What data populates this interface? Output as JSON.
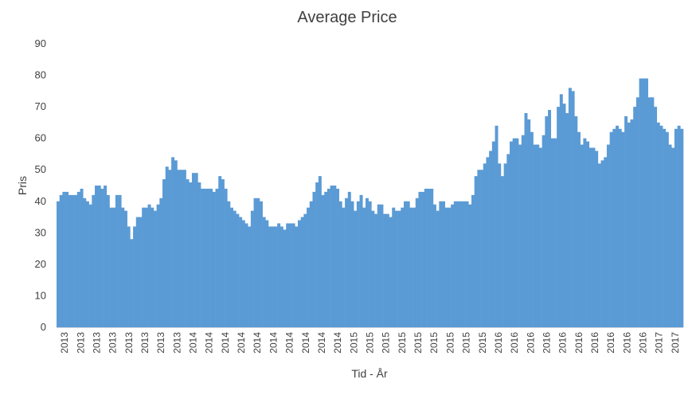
{
  "chart_data": {
    "type": "area",
    "title": "Average Price",
    "xlabel": "Tid - År",
    "ylabel": "Pris",
    "ylim": [
      0,
      90
    ],
    "yticks": [
      "0",
      "10",
      "20",
      "30",
      "40",
      "50",
      "60",
      "70",
      "80",
      "90"
    ],
    "xtick_labels": [
      "2013",
      "2013",
      "2013",
      "2013",
      "2013",
      "2013",
      "2013",
      "2013",
      "2014",
      "2014",
      "2014",
      "2014",
      "2014",
      "2014",
      "2014",
      "2014",
      "2014",
      "2014",
      "2015",
      "2015",
      "2015",
      "2015",
      "2015",
      "2015",
      "2015",
      "2015",
      "2015",
      "2016",
      "2016",
      "2016",
      "2016",
      "2016",
      "2016",
      "2016",
      "2016",
      "2016",
      "2016",
      "2017",
      "2017"
    ],
    "grid": false,
    "legend": "none",
    "color": "#5b9bd5",
    "series": [
      {
        "values": [
          40,
          42,
          43,
          43,
          42,
          42,
          42,
          43,
          44,
          41,
          40,
          39,
          42,
          45,
          45,
          44,
          45,
          42,
          38,
          38,
          42,
          42,
          38,
          37,
          32,
          28,
          32,
          35,
          35,
          38,
          38,
          39,
          38,
          37,
          39,
          41,
          47,
          51,
          50,
          54,
          53,
          50,
          50,
          50,
          47,
          46,
          49,
          49,
          46,
          44,
          44,
          44,
          44,
          43,
          44,
          48,
          47,
          44,
          40,
          38,
          37,
          36,
          35,
          34,
          33,
          32,
          37,
          41,
          41,
          40,
          35,
          34,
          32,
          32,
          32,
          33,
          32,
          31,
          33,
          33,
          33,
          32,
          34,
          35,
          36,
          38,
          40,
          43,
          46,
          48,
          42,
          43,
          44,
          45,
          45,
          44,
          40,
          38,
          41,
          43,
          40,
          37,
          40,
          42,
          38,
          41,
          40,
          37,
          36,
          39,
          39,
          36,
          36,
          35,
          38,
          37,
          37,
          38,
          40,
          40,
          38,
          38,
          41,
          43,
          43,
          44,
          44,
          44,
          39,
          37,
          40,
          40,
          38,
          38,
          39,
          40,
          40,
          40,
          40,
          40,
          39,
          42,
          48,
          50,
          50,
          52,
          54,
          56,
          59,
          64,
          52,
          48,
          52,
          55,
          59,
          60,
          60,
          58,
          61,
          68,
          66,
          62,
          58,
          58,
          57,
          61,
          67,
          69,
          60,
          60,
          70,
          74,
          71,
          68,
          76,
          75,
          67,
          62,
          58,
          60,
          59,
          57,
          57,
          56,
          52,
          53,
          54,
          58,
          62,
          63,
          64,
          63,
          62,
          67,
          65,
          66,
          70,
          73,
          79,
          79,
          79,
          73,
          73,
          70,
          65,
          64,
          63,
          62,
          58,
          57,
          63,
          64,
          63
        ]
      }
    ]
  }
}
